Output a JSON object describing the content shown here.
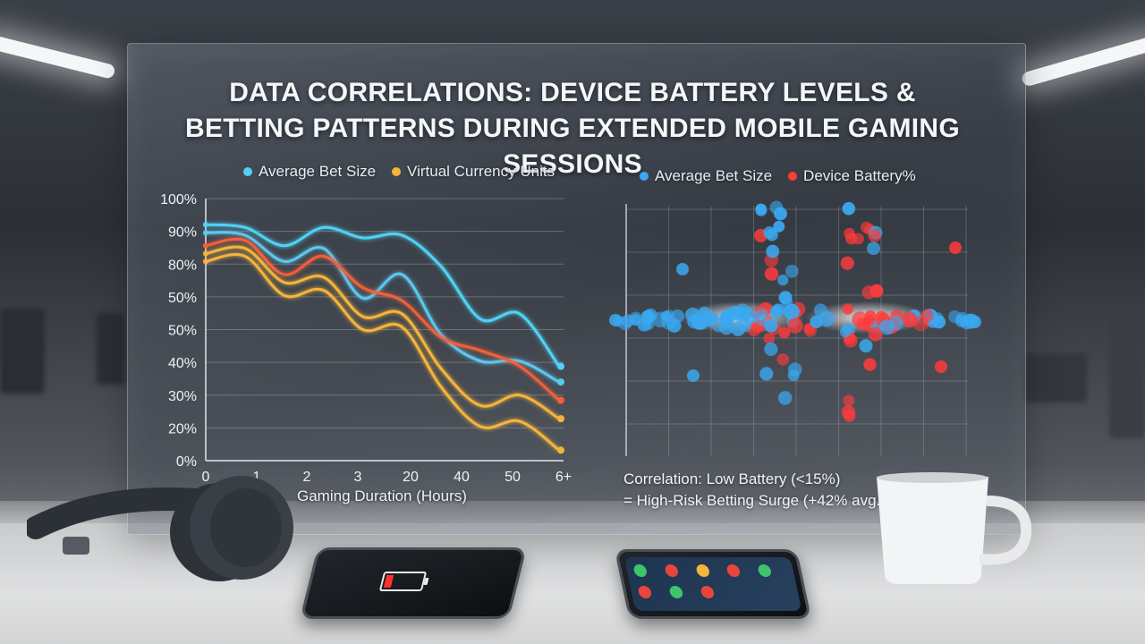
{
  "title": "DATA CORRELATIONS: DEVICE BATTERY LEVELS & BETTING PATTERNS DURING EXTENDED MOBILE GAMING SESSIONS",
  "colors": {
    "bet_size": "#4fd2f5",
    "virtual_currency": "#f5b43a",
    "third_line": "#f0603a",
    "battery": "#ff3b3b"
  },
  "chart_data": [
    {
      "type": "line",
      "legend": [
        "Average Bet Size",
        "Virtual Currency Units"
      ],
      "legend_position": "top",
      "x_ticks": [
        "0",
        "1",
        "2",
        "3",
        "20",
        "40",
        "50",
        "6+"
      ],
      "y_ticks": [
        "0%",
        "20%",
        "30%",
        "40%",
        "50%",
        "50%",
        "80%",
        "90%",
        "100%"
      ],
      "xlabel": "Gaming Duration (Hours)",
      "ylabel": "",
      "grid": true,
      "series": [
        {
          "name": "Average Bet Size",
          "color": "#4fd2f5",
          "values": [
            90,
            89,
            82,
            89,
            85,
            86,
            74,
            54,
            56,
            36
          ]
        },
        {
          "color": "#5cc8f0",
          "values": [
            87,
            86,
            76,
            81,
            62,
            71,
            48,
            38,
            38,
            30
          ]
        },
        {
          "color": "#f0603a",
          "values": [
            82,
            84,
            71,
            78,
            66,
            61,
            47,
            42,
            36,
            23
          ]
        },
        {
          "name": "Virtual Currency Units",
          "color": "#f5b43a",
          "values": [
            79,
            81,
            68,
            70,
            55,
            56,
            35,
            21,
            25,
            16
          ]
        },
        {
          "color": "#f5b43a",
          "values": [
            76,
            78,
            63,
            65,
            50,
            51,
            28,
            13,
            15,
            4
          ]
        }
      ]
    },
    {
      "type": "scatter",
      "legend": [
        "Average Bet Size",
        "Device Battery%"
      ],
      "legend_position": "top",
      "grid": true,
      "series": [
        {
          "name": "Average Bet Size",
          "color": "#3aa8f0"
        },
        {
          "name": "Device Battery%",
          "color": "#ff3b3b"
        }
      ]
    }
  ],
  "annotation": {
    "line1": "Correlation: Low Battery (<15%)",
    "line2": "= High-Risk Betting Surge (+42% avg. wager)"
  }
}
